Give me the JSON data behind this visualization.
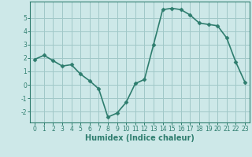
{
  "x": [
    0,
    1,
    2,
    3,
    4,
    5,
    6,
    7,
    8,
    9,
    10,
    11,
    12,
    13,
    14,
    15,
    16,
    17,
    18,
    19,
    20,
    21,
    22,
    23
  ],
  "y": [
    1.9,
    2.2,
    1.8,
    1.4,
    1.5,
    0.8,
    0.3,
    -0.3,
    -2.4,
    -2.1,
    -1.3,
    0.1,
    0.4,
    3.0,
    5.6,
    5.7,
    5.6,
    5.2,
    4.6,
    4.5,
    4.4,
    3.5,
    1.7,
    0.2
  ],
  "line_color": "#2e7d6e",
  "marker": "D",
  "marker_size": 2.5,
  "bg_color": "#cde8e8",
  "grid_color": "#a0c8c8",
  "xlabel": "Humidex (Indice chaleur)",
  "xlim": [
    -0.5,
    23.5
  ],
  "ylim": [
    -2.8,
    6.2
  ],
  "yticks": [
    -2,
    -1,
    0,
    1,
    2,
    3,
    4,
    5
  ],
  "xticks": [
    0,
    1,
    2,
    3,
    4,
    5,
    6,
    7,
    8,
    9,
    10,
    11,
    12,
    13,
    14,
    15,
    16,
    17,
    18,
    19,
    20,
    21,
    22,
    23
  ],
  "linewidth": 1.2,
  "tick_fontsize": 5.5,
  "xlabel_fontsize": 7.0
}
